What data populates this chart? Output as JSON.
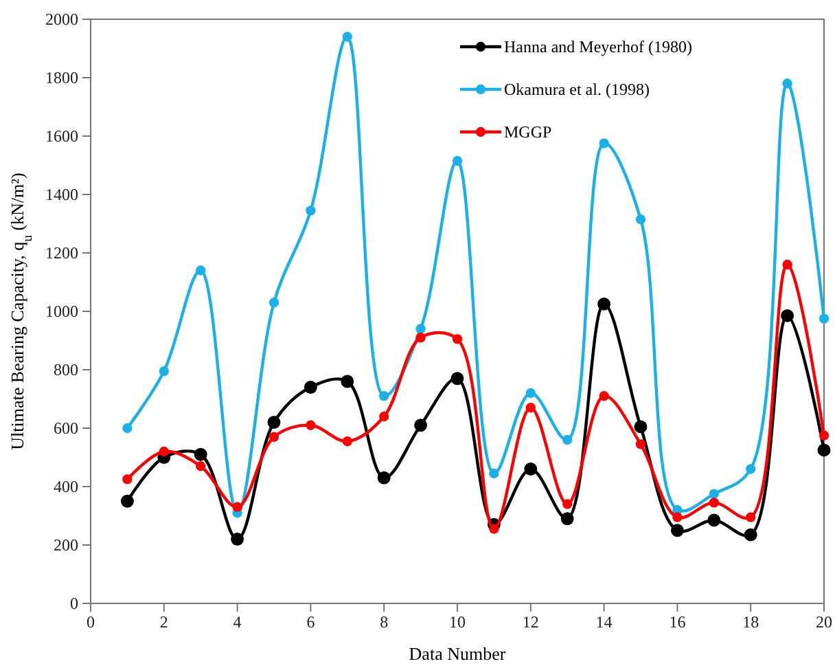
{
  "chart_data": {
    "type": "line",
    "xlabel": "Data Number",
    "ylabel": "Ultimate Bearing Capacity, q$_{u}$ (kN/m²)",
    "x": [
      1,
      2,
      3,
      4,
      5,
      6,
      7,
      8,
      9,
      10,
      11,
      12,
      13,
      14,
      15,
      16,
      17,
      18,
      19,
      20
    ],
    "xlim": [
      0,
      20
    ],
    "xticks": [
      0,
      2,
      4,
      6,
      8,
      10,
      12,
      14,
      16,
      18,
      20
    ],
    "ylim": [
      0,
      2000
    ],
    "yticks": [
      0,
      200,
      400,
      600,
      800,
      1000,
      1200,
      1400,
      1600,
      1800,
      2000
    ],
    "grid": false,
    "legend": "top right",
    "marker": "circle",
    "line_style": "solid",
    "series": [
      {
        "name": "Hanna and Meyerhof (1980)",
        "color": "#000000",
        "values": [
          350,
          500,
          510,
          220,
          620,
          740,
          760,
          430,
          610,
          770,
          270,
          460,
          290,
          1025,
          605,
          250,
          285,
          235,
          985,
          525
        ]
      },
      {
        "name": "Okamura et al. (1998)",
        "color": "#1ab0e8",
        "values": [
          600,
          795,
          1140,
          310,
          1030,
          1345,
          1940,
          710,
          940,
          1515,
          445,
          720,
          560,
          1575,
          1315,
          320,
          375,
          460,
          1780,
          975
        ]
      },
      {
        "name": "MGGP",
        "color": "#ff0000",
        "values": [
          425,
          520,
          470,
          330,
          570,
          610,
          555,
          640,
          910,
          905,
          255,
          670,
          340,
          710,
          545,
          295,
          345,
          295,
          1160,
          575
        ]
      }
    ]
  }
}
